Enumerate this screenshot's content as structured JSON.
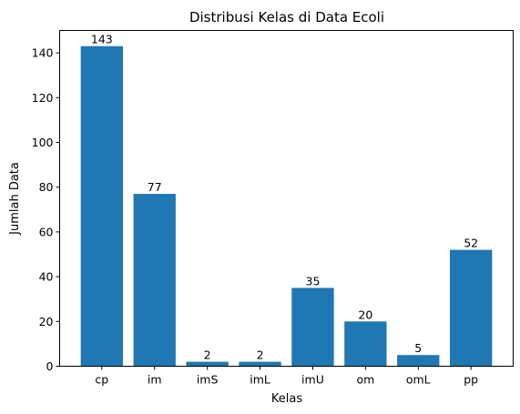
{
  "chart_data": {
    "type": "bar",
    "title": "Distribusi Kelas di Data Ecoli",
    "xlabel": "Kelas",
    "ylabel": "Jumlah Data",
    "categories": [
      "cp",
      "im",
      "imS",
      "imL",
      "imU",
      "om",
      "omL",
      "pp"
    ],
    "values": [
      143,
      77,
      2,
      2,
      35,
      20,
      5,
      52
    ],
    "ylim": [
      0,
      150
    ],
    "yticks": [
      0,
      20,
      40,
      60,
      80,
      100,
      120,
      140
    ],
    "bar_color": "#1f77b4",
    "grid": false,
    "legend": "none"
  }
}
